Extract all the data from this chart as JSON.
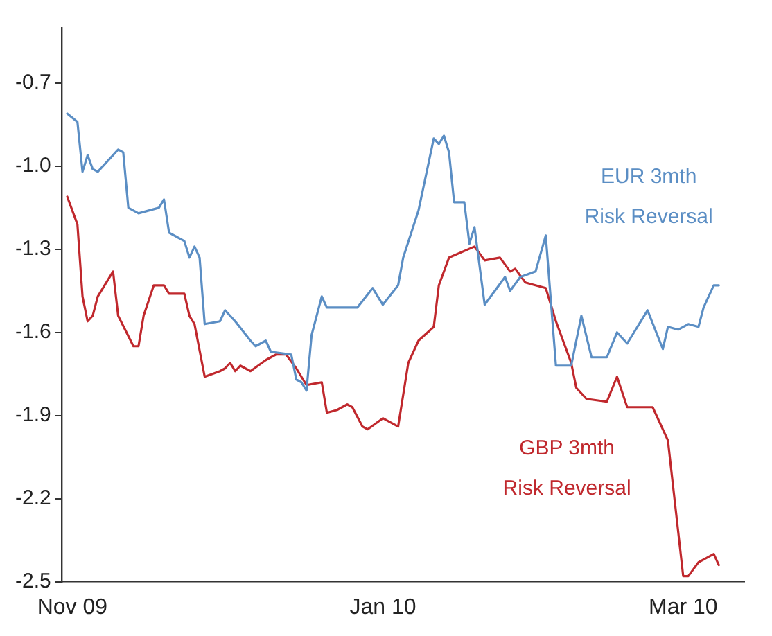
{
  "chart_data": {
    "type": "line",
    "xlim": [
      "2009-10-30",
      "2010-03-13"
    ],
    "xticks": [
      {
        "value": "2009-11-01",
        "label": "Nov 09"
      },
      {
        "value": "2010-01-01",
        "label": "Jan 10"
      },
      {
        "value": "2010-03-01",
        "label": "Mar 10"
      }
    ],
    "ylim": [
      -2.5,
      -0.5
    ],
    "yticks": [
      -2.5,
      -2.2,
      -1.9,
      -1.6,
      -1.3,
      {
        "value": -1.0,
        "label": "-1.0"
      },
      -0.7
    ],
    "grid": false,
    "legend": false,
    "marker": "none",
    "line_style": "solid",
    "series": [
      {
        "name": "EUR 3mth Risk Reversal",
        "color": "#5b8ec4",
        "x": [
          "2009-10-31",
          "2009-11-02",
          "2009-11-03",
          "2009-11-04",
          "2009-11-05",
          "2009-11-06",
          "2009-11-10",
          "2009-11-11",
          "2009-11-12",
          "2009-11-14",
          "2009-11-18",
          "2009-11-19",
          "2009-11-20",
          "2009-11-23",
          "2009-11-24",
          "2009-11-25",
          "2009-11-26",
          "2009-11-27",
          "2009-11-30",
          "2009-12-01",
          "2009-12-03",
          "2009-12-06",
          "2009-12-07",
          "2009-12-09",
          "2009-12-10",
          "2009-12-14",
          "2009-12-15",
          "2009-12-16",
          "2009-12-17",
          "2009-12-18",
          "2009-12-20",
          "2009-12-21",
          "2009-12-23",
          "2009-12-26",
          "2009-12-27",
          "2009-12-30",
          "2010-01-01",
          "2010-01-04",
          "2010-01-05",
          "2010-01-08",
          "2010-01-11",
          "2010-01-12",
          "2010-01-13",
          "2010-01-14",
          "2010-01-15",
          "2010-01-17",
          "2010-01-18",
          "2010-01-19",
          "2010-01-21",
          "2010-01-25",
          "2010-01-26",
          "2010-01-28",
          "2010-01-31",
          "2010-02-02",
          "2010-02-04",
          "2010-02-07",
          "2010-02-09",
          "2010-02-11",
          "2010-02-14",
          "2010-02-16",
          "2010-02-18",
          "2010-02-22",
          "2010-02-25",
          "2010-02-26",
          "2010-02-28",
          "2010-03-02",
          "2010-03-04",
          "2010-03-05",
          "2010-03-07",
          "2010-03-08"
        ],
        "values": [
          -0.81,
          -0.84,
          -1.02,
          -0.96,
          -1.01,
          -1.02,
          -0.94,
          -0.95,
          -1.15,
          -1.17,
          -1.15,
          -1.12,
          -1.24,
          -1.27,
          -1.33,
          -1.29,
          -1.33,
          -1.57,
          -1.56,
          -1.52,
          -1.56,
          -1.63,
          -1.65,
          -1.63,
          -1.67,
          -1.68,
          -1.77,
          -1.78,
          -1.81,
          -1.61,
          -1.47,
          -1.51,
          -1.51,
          -1.51,
          -1.51,
          -1.44,
          -1.5,
          -1.43,
          -1.33,
          -1.16,
          -0.9,
          -0.92,
          -0.89,
          -0.95,
          -1.13,
          -1.13,
          -1.28,
          -1.22,
          -1.5,
          -1.4,
          -1.45,
          -1.4,
          -1.38,
          -1.25,
          -1.72,
          -1.72,
          -1.54,
          -1.69,
          -1.69,
          -1.6,
          -1.64,
          -1.52,
          -1.66,
          -1.58,
          -1.59,
          -1.57,
          -1.58,
          -1.51,
          -1.43,
          -1.43
        ]
      },
      {
        "name": "GBP 3mth Risk Reversal",
        "color": "#c0282d",
        "x": [
          "2009-10-31",
          "2009-11-02",
          "2009-11-03",
          "2009-11-04",
          "2009-11-05",
          "2009-11-06",
          "2009-11-09",
          "2009-11-10",
          "2009-11-13",
          "2009-11-14",
          "2009-11-15",
          "2009-11-17",
          "2009-11-19",
          "2009-11-20",
          "2009-11-23",
          "2009-11-24",
          "2009-11-25",
          "2009-11-27",
          "2009-11-30",
          "2009-12-01",
          "2009-12-02",
          "2009-12-03",
          "2009-12-04",
          "2009-12-06",
          "2009-12-09",
          "2009-12-11",
          "2009-12-13",
          "2009-12-15",
          "2009-12-17",
          "2009-12-20",
          "2009-12-21",
          "2009-12-23",
          "2009-12-25",
          "2009-12-26",
          "2009-12-28",
          "2009-12-29",
          "2010-01-01",
          "2010-01-04",
          "2010-01-06",
          "2010-01-08",
          "2010-01-11",
          "2010-01-12",
          "2010-01-14",
          "2010-01-19",
          "2010-01-21",
          "2010-01-24",
          "2010-01-26",
          "2010-01-27",
          "2010-01-29",
          "2010-02-02",
          "2010-02-04",
          "2010-02-07",
          "2010-02-08",
          "2010-02-10",
          "2010-02-14",
          "2010-02-16",
          "2010-02-18",
          "2010-02-23",
          "2010-02-26",
          "2010-03-01",
          "2010-03-02",
          "2010-03-04",
          "2010-03-07",
          "2010-03-08"
        ],
        "values": [
          -1.11,
          -1.21,
          -1.47,
          -1.56,
          -1.54,
          -1.47,
          -1.38,
          -1.54,
          -1.65,
          -1.65,
          -1.54,
          -1.43,
          -1.43,
          -1.46,
          -1.46,
          -1.54,
          -1.57,
          -1.76,
          -1.74,
          -1.73,
          -1.71,
          -1.74,
          -1.72,
          -1.74,
          -1.7,
          -1.68,
          -1.68,
          -1.73,
          -1.79,
          -1.78,
          -1.89,
          -1.88,
          -1.86,
          -1.87,
          -1.94,
          -1.95,
          -1.91,
          -1.94,
          -1.71,
          -1.63,
          -1.58,
          -1.43,
          -1.33,
          -1.29,
          -1.34,
          -1.33,
          -1.38,
          -1.37,
          -1.42,
          -1.44,
          -1.56,
          -1.71,
          -1.8,
          -1.84,
          -1.85,
          -1.76,
          -1.87,
          -1.87,
          -1.99,
          -2.48,
          -2.48,
          -2.43,
          -2.4,
          -2.44
        ]
      }
    ]
  }
}
